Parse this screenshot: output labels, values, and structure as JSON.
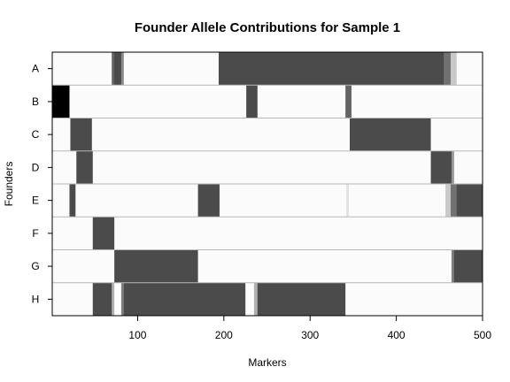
{
  "chart_data": {
    "type": "heatmap",
    "title": "Founder Allele Contributions for Sample 1",
    "xlabel": "Markers",
    "ylabel": "Founders",
    "xlim": [
      1,
      500
    ],
    "xticks": [
      100,
      200,
      300,
      400,
      500
    ],
    "founders": [
      "A",
      "B",
      "C",
      "D",
      "E",
      "F",
      "G",
      "H"
    ],
    "value_scale": "0 = no contribution (white), 1 = full contribution (black)",
    "rows": [
      {
        "founder": "A",
        "segments": [
          {
            "start": 1,
            "end": 70,
            "value": 0.0
          },
          {
            "start": 70,
            "end": 73,
            "value": 0.6
          },
          {
            "start": 73,
            "end": 81,
            "value": 0.7
          },
          {
            "start": 81,
            "end": 84,
            "value": 0.45
          },
          {
            "start": 84,
            "end": 194,
            "value": 0.0
          },
          {
            "start": 194,
            "end": 455,
            "value": 0.7
          },
          {
            "start": 455,
            "end": 463,
            "value": 0.55
          },
          {
            "start": 463,
            "end": 470,
            "value": 0.2
          },
          {
            "start": 470,
            "end": 500,
            "value": 0.0
          }
        ]
      },
      {
        "founder": "B",
        "segments": [
          {
            "start": 1,
            "end": 21,
            "value": 1.0
          },
          {
            "start": 21,
            "end": 226,
            "value": 0.0
          },
          {
            "start": 226,
            "end": 239,
            "value": 0.7
          },
          {
            "start": 239,
            "end": 341,
            "value": 0.0
          },
          {
            "start": 341,
            "end": 348,
            "value": 0.6
          },
          {
            "start": 348,
            "end": 500,
            "value": 0.0
          }
        ]
      },
      {
        "founder": "C",
        "segments": [
          {
            "start": 1,
            "end": 22,
            "value": 0.0
          },
          {
            "start": 22,
            "end": 47,
            "value": 0.7
          },
          {
            "start": 47,
            "end": 346,
            "value": 0.0
          },
          {
            "start": 346,
            "end": 440,
            "value": 0.7
          },
          {
            "start": 440,
            "end": 500,
            "value": 0.0
          }
        ]
      },
      {
        "founder": "D",
        "segments": [
          {
            "start": 1,
            "end": 29,
            "value": 0.0
          },
          {
            "start": 29,
            "end": 48,
            "value": 0.7
          },
          {
            "start": 48,
            "end": 440,
            "value": 0.0
          },
          {
            "start": 440,
            "end": 464,
            "value": 0.7
          },
          {
            "start": 464,
            "end": 467,
            "value": 0.4
          },
          {
            "start": 467,
            "end": 500,
            "value": 0.0
          }
        ]
      },
      {
        "founder": "E",
        "segments": [
          {
            "start": 1,
            "end": 21,
            "value": 0.0
          },
          {
            "start": 21,
            "end": 28,
            "value": 0.7
          },
          {
            "start": 28,
            "end": 170,
            "value": 0.0
          },
          {
            "start": 170,
            "end": 195,
            "value": 0.7
          },
          {
            "start": 195,
            "end": 342,
            "value": 0.0
          },
          {
            "start": 342,
            "end": 345,
            "value": 0.1
          },
          {
            "start": 345,
            "end": 457,
            "value": 0.0
          },
          {
            "start": 457,
            "end": 463,
            "value": 0.2
          },
          {
            "start": 463,
            "end": 470,
            "value": 0.55
          },
          {
            "start": 470,
            "end": 500,
            "value": 0.7
          }
        ]
      },
      {
        "founder": "F",
        "segments": [
          {
            "start": 1,
            "end": 48,
            "value": 0.0
          },
          {
            "start": 48,
            "end": 73,
            "value": 0.7
          },
          {
            "start": 73,
            "end": 500,
            "value": 0.0
          }
        ]
      },
      {
        "founder": "G",
        "segments": [
          {
            "start": 1,
            "end": 73,
            "value": 0.0
          },
          {
            "start": 73,
            "end": 170,
            "value": 0.7
          },
          {
            "start": 170,
            "end": 464,
            "value": 0.0
          },
          {
            "start": 464,
            "end": 467,
            "value": 0.5
          },
          {
            "start": 467,
            "end": 500,
            "value": 0.7
          }
        ]
      },
      {
        "founder": "H",
        "segments": [
          {
            "start": 1,
            "end": 48,
            "value": 0.0
          },
          {
            "start": 48,
            "end": 70,
            "value": 0.7
          },
          {
            "start": 70,
            "end": 73,
            "value": 0.3
          },
          {
            "start": 73,
            "end": 81,
            "value": 0.0
          },
          {
            "start": 81,
            "end": 84,
            "value": 0.5
          },
          {
            "start": 84,
            "end": 225,
            "value": 0.7
          },
          {
            "start": 225,
            "end": 235,
            "value": 0.0
          },
          {
            "start": 235,
            "end": 239,
            "value": 0.3
          },
          {
            "start": 239,
            "end": 341,
            "value": 0.7
          },
          {
            "start": 341,
            "end": 500,
            "value": 0.0
          }
        ]
      }
    ],
    "colors": {
      "low": "#fbfbfb",
      "high": "#000000",
      "separator": "#b8b8b8"
    }
  }
}
